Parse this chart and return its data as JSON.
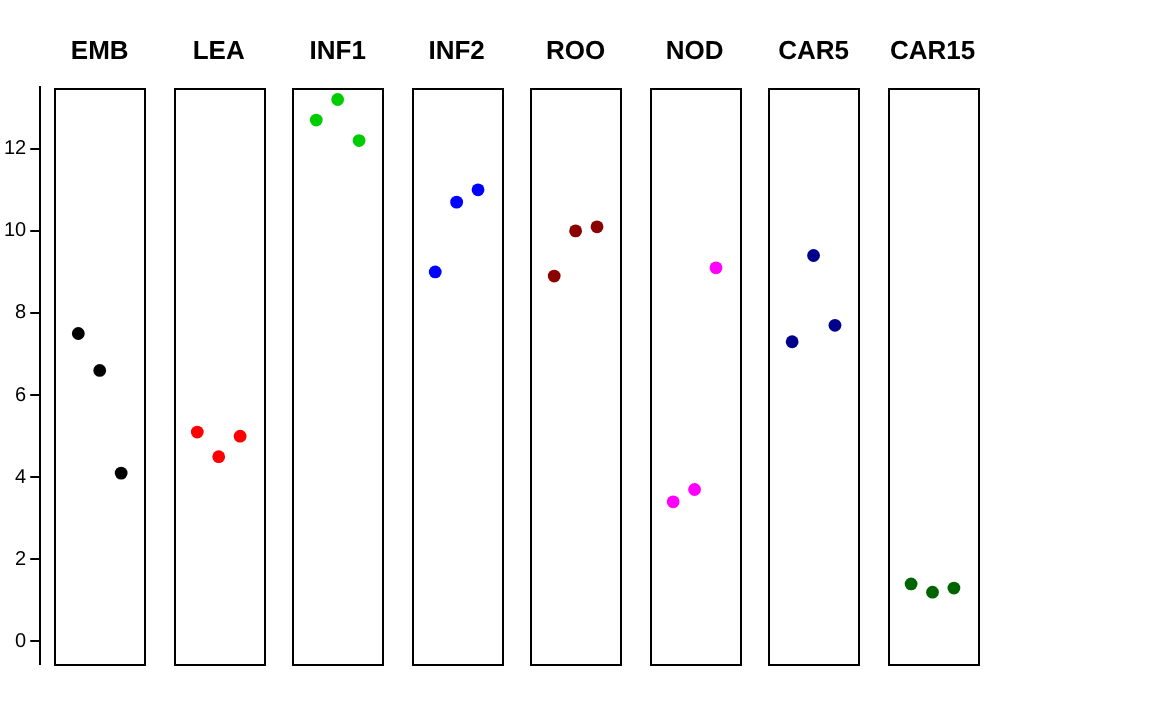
{
  "chart_data": {
    "type": "scatter",
    "categories": [
      "EMB",
      "LEA",
      "INF1",
      "INF2",
      "ROO",
      "NOD",
      "CAR5",
      "CAR15"
    ],
    "series": [
      {
        "x": [
          "EMB",
          "EMB",
          "EMB"
        ],
        "values": [
          7.5,
          6.6,
          4.1
        ],
        "color": "#000000"
      },
      {
        "x": [
          "LEA",
          "LEA",
          "LEA"
        ],
        "values": [
          5.1,
          4.5,
          5.0
        ],
        "color": "#ff0000"
      },
      {
        "x": [
          "INF1",
          "INF1",
          "INF1"
        ],
        "values": [
          12.7,
          13.2,
          12.2
        ],
        "color": "#00cd00"
      },
      {
        "x": [
          "INF2",
          "INF2",
          "INF2"
        ],
        "values": [
          9.0,
          10.7,
          11.0
        ],
        "color": "#0000ff"
      },
      {
        "x": [
          "ROO",
          "ROO",
          "ROO"
        ],
        "values": [
          8.9,
          10.0,
          10.1
        ],
        "color": "#8b0000"
      },
      {
        "x": [
          "NOD",
          "NOD",
          "NOD"
        ],
        "values": [
          3.4,
          3.7,
          9.1
        ],
        "color": "#ff00ff"
      },
      {
        "x": [
          "CAR5",
          "CAR5",
          "CAR5"
        ],
        "values": [
          7.3,
          9.4,
          7.7
        ],
        "color": "#00008b"
      },
      {
        "x": [
          "CAR15",
          "CAR15",
          "CAR15"
        ],
        "values": [
          1.4,
          1.2,
          1.3
        ],
        "color": "#006400"
      }
    ],
    "ylim": [
      -0.55,
      13.5
    ],
    "yticks": [
      0,
      2,
      4,
      6,
      8,
      10,
      12
    ],
    "marker": "circle",
    "grid": false,
    "legend": false
  }
}
